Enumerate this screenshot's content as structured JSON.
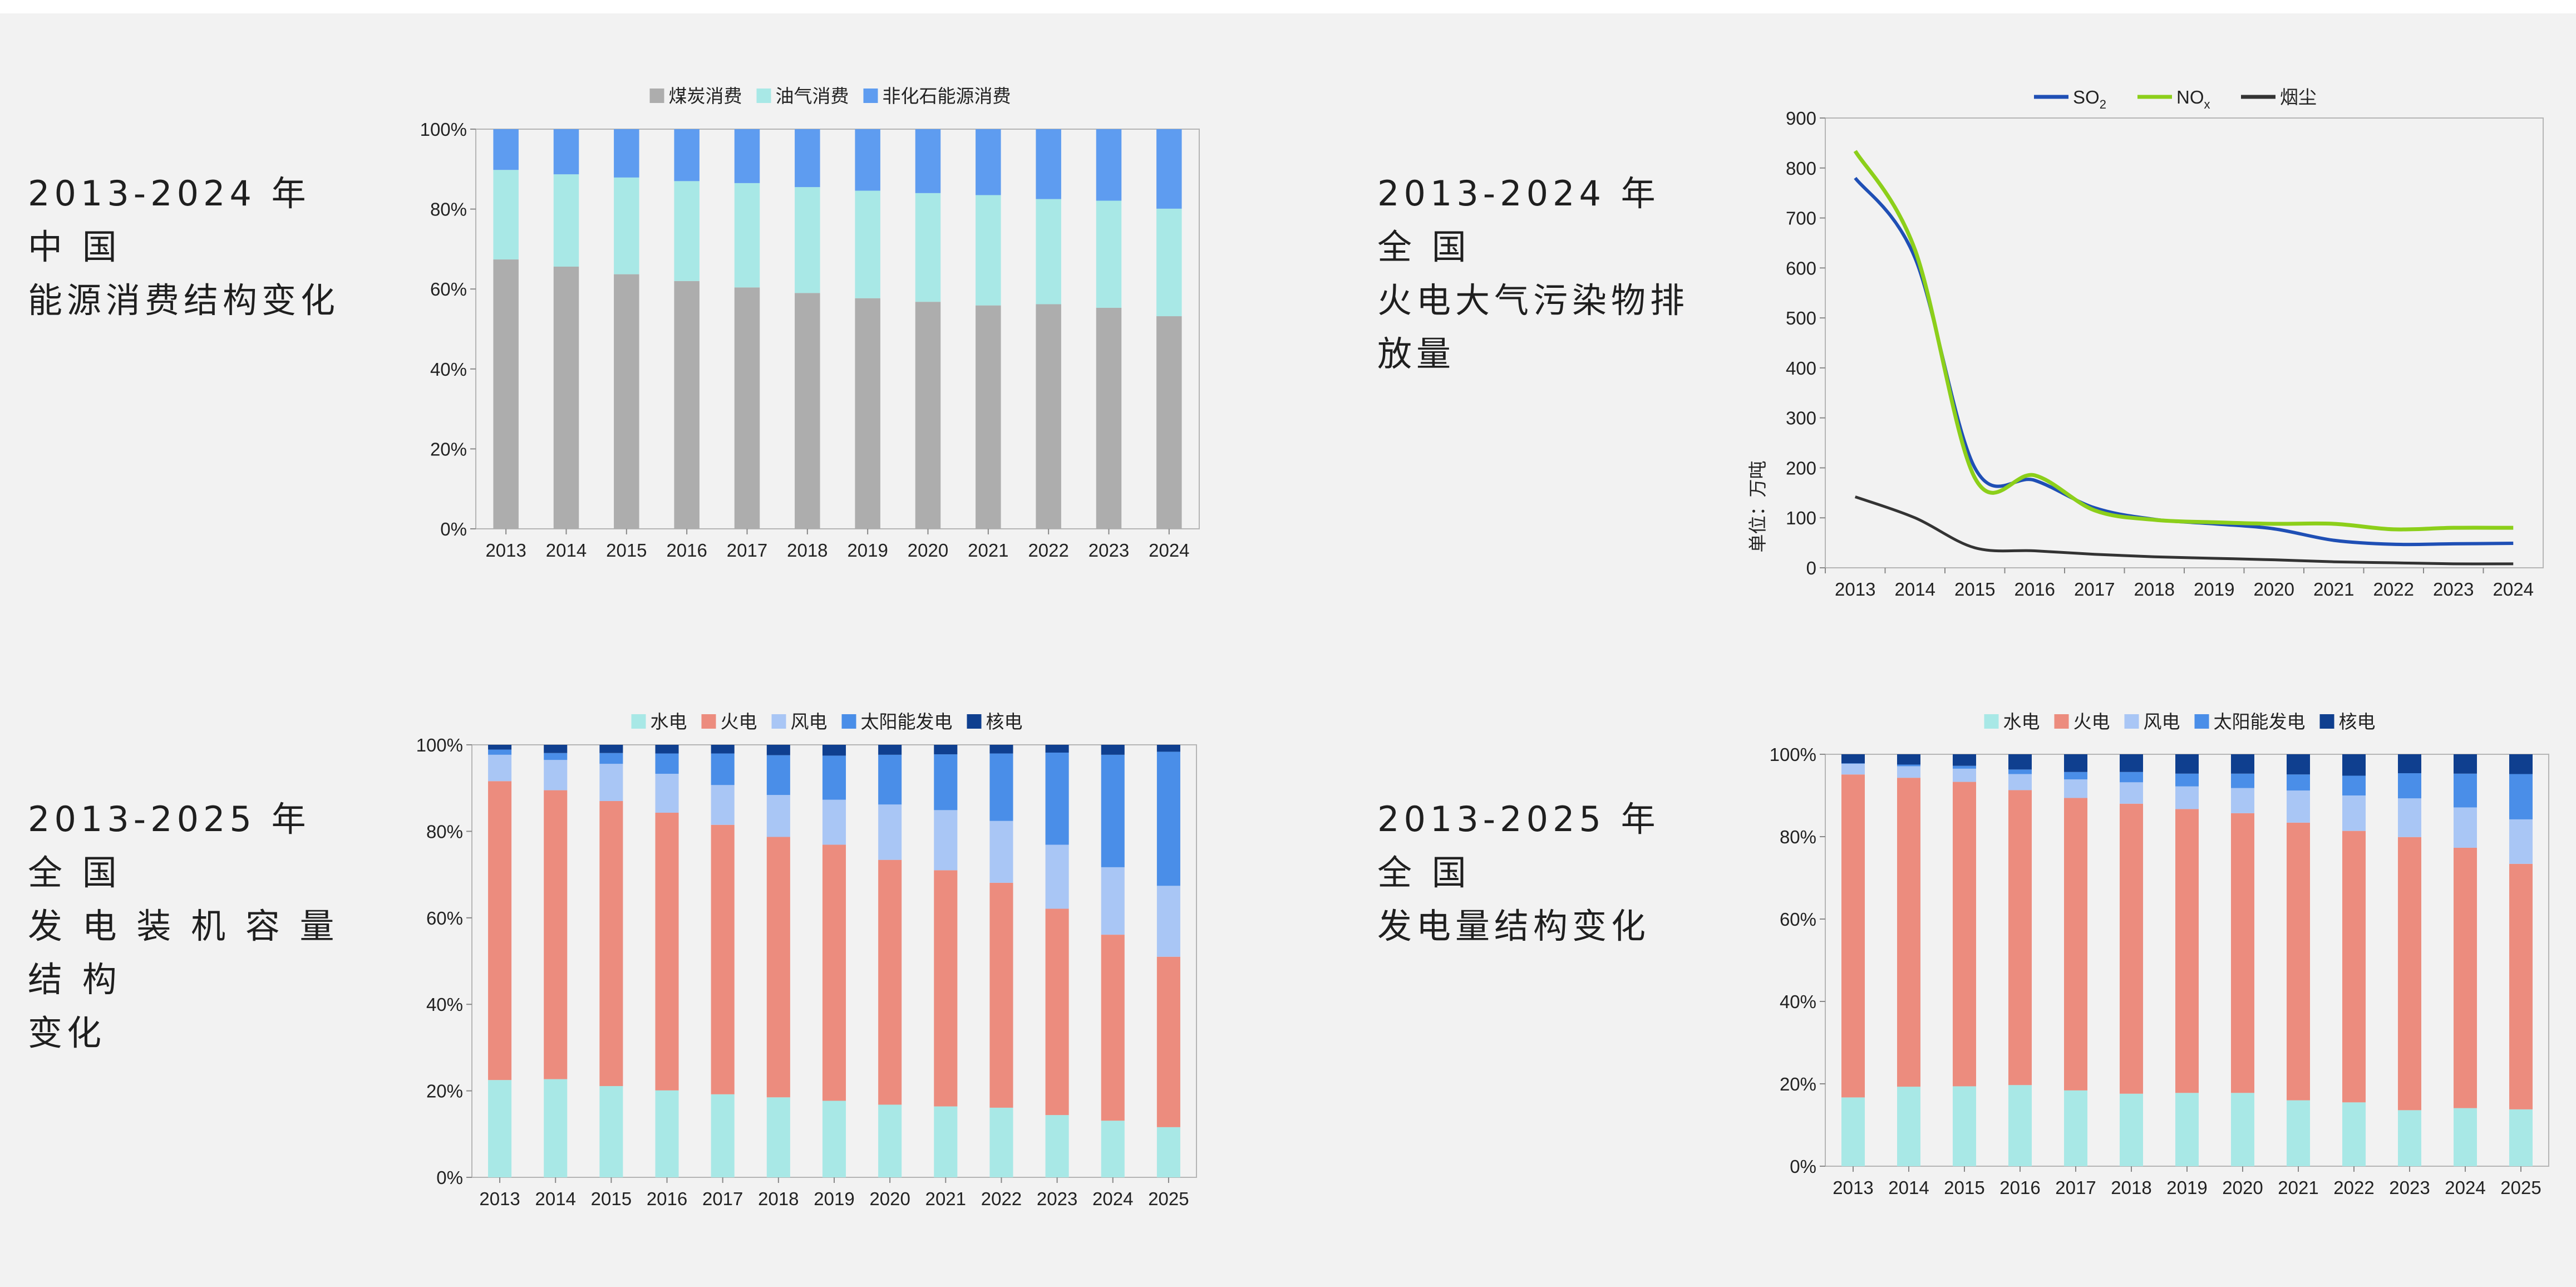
{
  "sections": [
    {
      "title_lines": [
        "2013-2024 年 中 国",
        "能源消费结构变化"
      ]
    },
    {
      "title_lines": [
        "2013-2024 年 全 国",
        "火电大气污染物排放量"
      ]
    },
    {
      "title_lines": [
        "2013-2025 年 全 国",
        "发 电 装 机 容 量 结 构",
        "变化"
      ]
    },
    {
      "title_lines": [
        "2013-2025 年 全 国",
        "发电量结构变化"
      ]
    }
  ],
  "colors": {
    "coal": "#adadad",
    "oilgas": "#a8e8e6",
    "nonfossil": "#5e9cf0",
    "hydro": "#a8e8e6",
    "thermal": "#ec8c7e",
    "wind": "#a9c6f5",
    "solar": "#4a8ee8",
    "nuclear": "#0f3f8f",
    "so2": "#1f4fb5",
    "nox": "#8ccf1a",
    "dust": "#333333"
  },
  "chart_data": [
    {
      "type": "bar",
      "stacked": true,
      "categories": [
        "2013",
        "2014",
        "2015",
        "2016",
        "2017",
        "2018",
        "2019",
        "2020",
        "2021",
        "2022",
        "2023",
        "2024"
      ],
      "series": [
        {
          "name": "煤炭消费",
          "values": [
            67.4,
            65.6,
            63.7,
            62.0,
            60.4,
            59.0,
            57.7,
            56.8,
            55.9,
            56.2,
            55.3,
            53.2
          ]
        },
        {
          "name": "油气消费",
          "values": [
            22.4,
            23.1,
            24.2,
            25.0,
            26.1,
            26.5,
            26.9,
            27.2,
            27.6,
            26.3,
            26.8,
            26.9
          ]
        },
        {
          "name": "非化石能源消费",
          "values": [
            10.2,
            11.3,
            12.1,
            13.0,
            13.5,
            14.5,
            15.4,
            16.0,
            16.5,
            17.5,
            17.9,
            19.9
          ]
        }
      ],
      "ylim": [
        0,
        100
      ],
      "yticks": [
        "0%",
        "20%",
        "40%",
        "60%",
        "80%",
        "100%"
      ],
      "legend": "top"
    },
    {
      "type": "line",
      "x": [
        "2013",
        "2014",
        "2015",
        "2016",
        "2017",
        "2018",
        "2019",
        "2020",
        "2021",
        "2022",
        "2023",
        "2024"
      ],
      "series": [
        {
          "name": "SO",
          "sub": "2",
          "values": [
            780,
            620,
            200,
            175,
            120,
            97,
            88,
            78,
            55,
            47,
            48,
            49
          ]
        },
        {
          "name": "NO",
          "sub": "x",
          "values": [
            834,
            636,
            180,
            185,
            115,
            96,
            91,
            88,
            88,
            77,
            80,
            80
          ]
        },
        {
          "name": "烟尘",
          "values": [
            142,
            100,
            40,
            34,
            27,
            22,
            19,
            16,
            12,
            10,
            8,
            8
          ]
        }
      ],
      "ylabel": "单位：万吨",
      "ylim": [
        0,
        900
      ],
      "yticks": [
        "0",
        "100",
        "200",
        "300",
        "400",
        "500",
        "600",
        "700",
        "800",
        "900"
      ],
      "legend": "top"
    },
    {
      "type": "bar",
      "stacked": true,
      "categories": [
        "2013",
        "2014",
        "2015",
        "2016",
        "2017",
        "2018",
        "2019",
        "2020",
        "2021",
        "2022",
        "2023",
        "2024",
        "2025"
      ],
      "series": [
        {
          "name": "水电",
          "values": [
            22.5,
            22.7,
            21.1,
            20.1,
            19.2,
            18.5,
            17.7,
            16.8,
            16.4,
            16.1,
            14.4,
            13.1,
            11.6
          ]
        },
        {
          "name": "火电",
          "values": [
            69.1,
            66.8,
            65.9,
            64.2,
            62.3,
            60.2,
            59.2,
            56.6,
            54.6,
            52.0,
            47.7,
            43.0,
            39.4
          ]
        },
        {
          "name": "风电",
          "values": [
            6.1,
            7.0,
            8.6,
            9.0,
            9.2,
            9.7,
            10.4,
            12.8,
            13.9,
            14.3,
            14.8,
            15.6,
            16.4
          ]
        },
        {
          "name": "太阳能发电",
          "values": [
            1.2,
            1.6,
            2.5,
            4.7,
            7.3,
            9.2,
            10.2,
            11.5,
            12.9,
            15.6,
            21.3,
            26.0,
            31.0
          ]
        },
        {
          "name": "核电",
          "values": [
            1.1,
            1.9,
            1.9,
            2.0,
            2.0,
            2.4,
            2.5,
            2.3,
            2.2,
            2.0,
            1.8,
            2.3,
            1.6
          ]
        }
      ],
      "ylim": [
        0,
        100
      ],
      "yticks": [
        "0%",
        "20%",
        "40%",
        "60%",
        "80%",
        "100%"
      ],
      "legend": "top"
    },
    {
      "type": "bar",
      "stacked": true,
      "categories": [
        "2013",
        "2014",
        "2015",
        "2016",
        "2017",
        "2018",
        "2019",
        "2020",
        "2021",
        "2022",
        "2023",
        "2024",
        "2025"
      ],
      "series": [
        {
          "name": "水电",
          "values": [
            16.7,
            19.3,
            19.4,
            19.7,
            18.4,
            17.6,
            17.8,
            17.8,
            16.0,
            15.5,
            13.6,
            14.1,
            13.8
          ]
        },
        {
          "name": "火电",
          "values": [
            78.4,
            75.0,
            73.9,
            71.6,
            71.0,
            70.4,
            68.9,
            67.9,
            67.4,
            65.9,
            66.3,
            63.2,
            59.6
          ]
        },
        {
          "name": "风电",
          "values": [
            2.6,
            2.8,
            3.2,
            3.9,
            4.5,
            5.2,
            5.5,
            6.1,
            7.8,
            8.6,
            9.4,
            9.8,
            10.8
          ]
        },
        {
          "name": "太阳能发电",
          "values": [
            0.1,
            0.4,
            0.7,
            1.1,
            1.8,
            2.5,
            3.1,
            3.5,
            3.9,
            4.8,
            6.1,
            8.2,
            11.0
          ]
        },
        {
          "name": "核电",
          "values": [
            2.2,
            2.5,
            2.8,
            3.7,
            4.3,
            4.3,
            4.7,
            4.7,
            4.9,
            5.2,
            4.6,
            4.7,
            4.8
          ]
        }
      ],
      "ylim": [
        0,
        100
      ],
      "yticks": [
        "0%",
        "20%",
        "40%",
        "60%",
        "80%",
        "100%"
      ],
      "legend": "top"
    }
  ]
}
